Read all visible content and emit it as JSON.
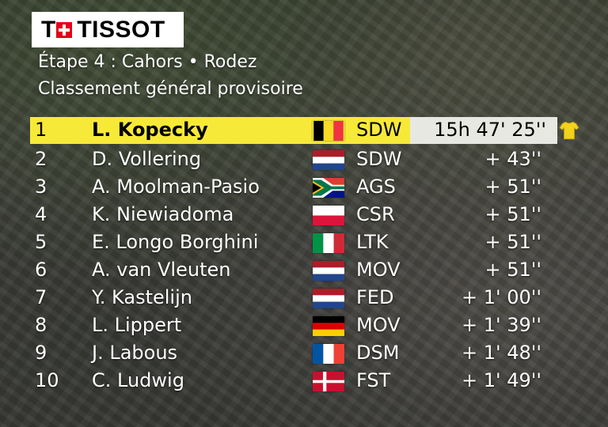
{
  "brand": "TISSOT",
  "stage_title": "Étape 4 : Cahors • Rodez",
  "classification_title": "Classement général provisoire",
  "colors": {
    "leader_bar": "#f7e938",
    "time_box": "#e8e8e2"
  },
  "standings": [
    {
      "rank": "1",
      "name": "L. Kopecky",
      "flag": "belgium",
      "team": "SDW",
      "gap": "15h 47' 25''"
    },
    {
      "rank": "2",
      "name": "D. Vollering",
      "flag": "netherlands",
      "team": "SDW",
      "gap": "+ 43''"
    },
    {
      "rank": "3",
      "name": "A. Moolman-Pasio",
      "flag": "south-africa",
      "team": "AGS",
      "gap": "+ 51''"
    },
    {
      "rank": "4",
      "name": "K. Niewiadoma",
      "flag": "poland",
      "team": "CSR",
      "gap": "+ 51''"
    },
    {
      "rank": "5",
      "name": "E. Longo Borghini",
      "flag": "italy",
      "team": "LTK",
      "gap": "+ 51''"
    },
    {
      "rank": "6",
      "name": "A. van Vleuten",
      "flag": "netherlands",
      "team": "MOV",
      "gap": "+ 51''"
    },
    {
      "rank": "7",
      "name": "Y. Kastelijn",
      "flag": "netherlands",
      "team": "FED",
      "gap": "+ 1' 00''"
    },
    {
      "rank": "8",
      "name": "L. Lippert",
      "flag": "germany",
      "team": "MOV",
      "gap": "+ 1' 39''"
    },
    {
      "rank": "9",
      "name": "J. Labous",
      "flag": "france",
      "team": "DSM",
      "gap": "+ 1' 48''"
    },
    {
      "rank": "10",
      "name": "C. Ludwig",
      "flag": "denmark",
      "team": "FST",
      "gap": "+ 1' 49''"
    }
  ]
}
